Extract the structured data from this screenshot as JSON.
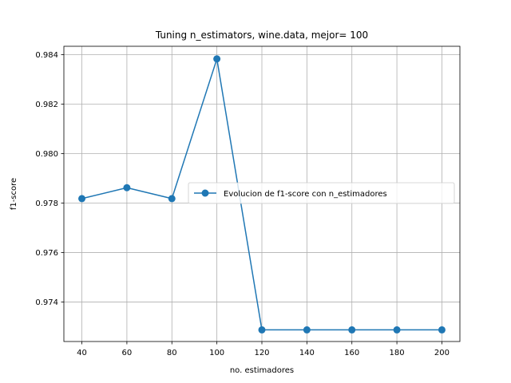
{
  "chart_data": {
    "type": "line",
    "title": "Tuning n_estimators, wine.data, mejor= 100",
    "xlabel": "no. estimadores",
    "ylabel": "f1-score",
    "x": [
      40,
      60,
      80,
      100,
      120,
      140,
      160,
      180,
      200
    ],
    "series": [
      {
        "name": "Evolucion de f1-score con n_estimadores",
        "values": [
          0.97818,
          0.97862,
          0.97818,
          0.98383,
          0.97287,
          0.97287,
          0.97287,
          0.97287,
          0.97287
        ],
        "color": "#1f77b4",
        "marker": "circle"
      }
    ],
    "xlim": [
      32,
      208
    ],
    "ylim": [
      0.9724,
      0.98434
    ],
    "xticks": [
      40,
      60,
      80,
      100,
      120,
      140,
      160,
      180,
      200
    ],
    "xtick_labels": [
      "40",
      "60",
      "80",
      "100",
      "120",
      "140",
      "160",
      "180",
      "200"
    ],
    "yticks": [
      0.974,
      0.976,
      0.978,
      0.98,
      0.982,
      0.984
    ],
    "ytick_labels": [
      "0.974",
      "0.976",
      "0.978",
      "0.980",
      "0.982",
      "0.984"
    ],
    "grid": true,
    "legend_position": "center-right"
  }
}
